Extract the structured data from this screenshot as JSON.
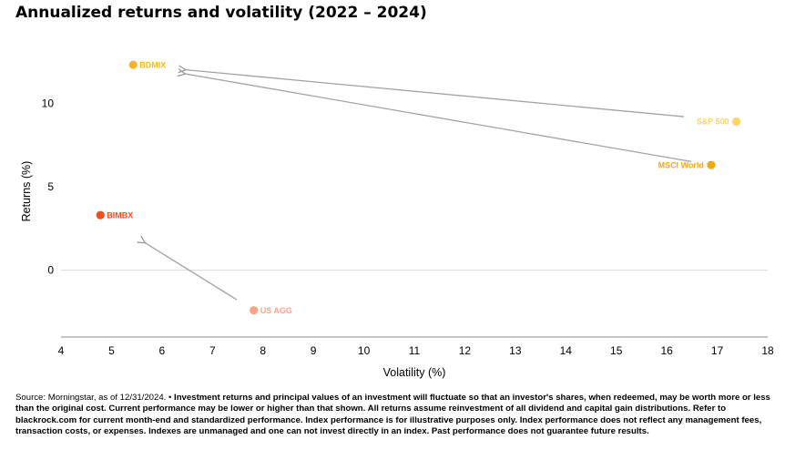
{
  "title": "Annualized returns and volatility (2022 – 2024)",
  "footnote": {
    "source": "Source: Morningstar, as of 12/31/2024. • ",
    "body": "Investment returns and principal values of an investment will fluctuate so that an investor's shares, when redeemed, may be worth more or less than the original cost. Current performance may be lower or higher than that shown. All returns assume reinvestment of all dividend and capital gain distributions. Refer to blackrock.com for current month-end and standardized performance. Index performance is for illustrative purposes only. Index performance does not reflect any management fees, transaction costs, or expenses. Indexes are unmanaged and one can not invest directly in an index. Past performance does not guarantee future results."
  },
  "chart_data": {
    "type": "scatter",
    "title": "Annualized returns and volatility (2022 – 2024)",
    "xlabel": "Volatility (%)",
    "ylabel": "Returns (%)",
    "xlim": [
      4,
      18
    ],
    "ylim": [
      -4,
      14
    ],
    "xticks": [
      4,
      5,
      6,
      7,
      8,
      9,
      10,
      11,
      12,
      13,
      14,
      15,
      16,
      17,
      18
    ],
    "yticks": [
      0,
      5,
      10
    ],
    "grid": "y-zero-line",
    "points": [
      {
        "label": "BDMIX",
        "x": 5.43,
        "y": 12.3,
        "color": "#f5b71d"
      },
      {
        "label": "S&P 500",
        "x": 17.38,
        "y": 8.9,
        "color": "#fcd46a"
      },
      {
        "label": "MSCI World",
        "x": 16.88,
        "y": 6.3,
        "color": "#f2a80f"
      },
      {
        "label": "BIMBX",
        "x": 4.78,
        "y": 3.3,
        "color": "#f04e23"
      },
      {
        "label": "US AGG",
        "x": 7.82,
        "y": -2.4,
        "color": "#f7a48a"
      }
    ],
    "arrows": [
      {
        "from": "S&P 500",
        "to": "BDMIX"
      },
      {
        "from": "MSCI World",
        "to": "BDMIX"
      },
      {
        "from": "US AGG",
        "to": "BIMBX"
      }
    ]
  }
}
